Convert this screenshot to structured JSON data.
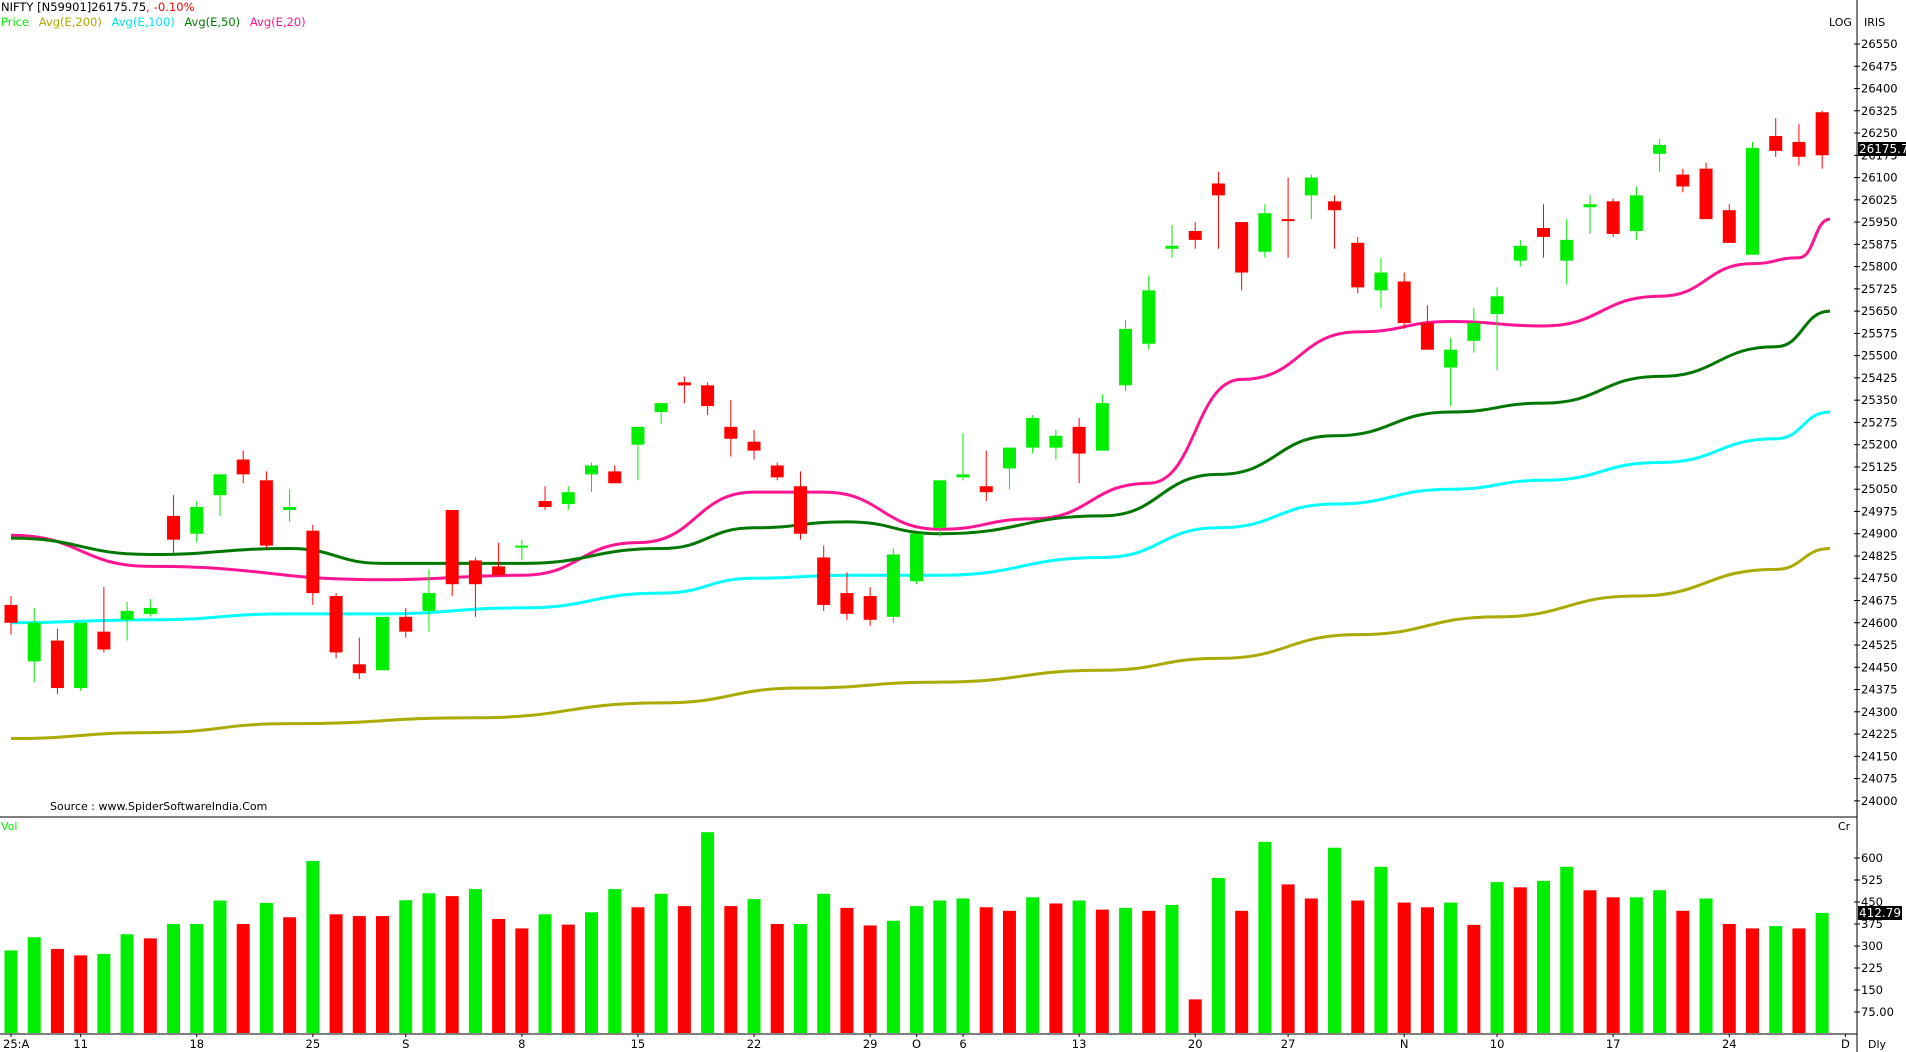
{
  "header": {
    "symbol": "NIFTY [N59901]",
    "last_price": "26175.75",
    "separator": ",",
    "change_pct": "-0.10%",
    "legend": [
      {
        "label": "Price",
        "color": "#00ee00"
      },
      {
        "label": "Avg(E,200)",
        "color": "#aaaa00"
      },
      {
        "label": "Avg(E,100)",
        "color": "#00ffff"
      },
      {
        "label": "Avg(E,50)",
        "color": "#007700"
      },
      {
        "label": "Avg(E,20)",
        "color": "#ff1493"
      }
    ]
  },
  "top_right": {
    "log_label": "LOG",
    "iris_label": "IRIS"
  },
  "source_text": "Source : www.SpiderSoftwareIndia.Com",
  "volume_panel": {
    "label": "Vol",
    "unit_label": "Cr",
    "last_value": "412.79"
  },
  "timeframe_label": "Dly",
  "price_axis": {
    "ticks": [
      "26550",
      "26475",
      "26400",
      "26325",
      "26250",
      "26175",
      "26100",
      "26025",
      "25950",
      "25875",
      "25800",
      "25725",
      "25650",
      "25575",
      "25500",
      "25425",
      "25350",
      "25275",
      "25200",
      "25125",
      "25050",
      "24975",
      "24900",
      "24825",
      "24750",
      "24675",
      "24600",
      "24525",
      "24450",
      "24375",
      "24300",
      "24225",
      "24150",
      "24075",
      "24000"
    ],
    "current_label": "26175.7"
  },
  "volume_axis": {
    "ticks": [
      "600",
      "525",
      "450",
      "375",
      "300",
      "225",
      "150",
      "75.00"
    ]
  },
  "x_axis_labels": [
    {
      "label": "25:A",
      "index": 0
    },
    {
      "label": "11",
      "index": 3
    },
    {
      "label": "18",
      "index": 8
    },
    {
      "label": "25",
      "index": 13
    },
    {
      "label": "S",
      "index": 17
    },
    {
      "label": "8",
      "index": 22
    },
    {
      "label": "15",
      "index": 27
    },
    {
      "label": "22",
      "index": 32
    },
    {
      "label": "29",
      "index": 37
    },
    {
      "label": "O",
      "index": 39
    },
    {
      "label": "6",
      "index": 41
    },
    {
      "label": "13",
      "index": 46
    },
    {
      "label": "20",
      "index": 51
    },
    {
      "label": "27",
      "index": 55
    },
    {
      "label": "N",
      "index": 60
    },
    {
      "label": "10",
      "index": 64
    },
    {
      "label": "17",
      "index": 69
    },
    {
      "label": "24",
      "index": 74
    },
    {
      "label": "D",
      "index": 79
    }
  ],
  "colors": {
    "up": "#00ee00",
    "down": "#ff0000",
    "ema200": "#aaaa00",
    "ema100": "#00ffff",
    "ema50": "#007700",
    "ema20": "#ff1493"
  },
  "chart_data": {
    "type": "candlestick",
    "title": "NIFTY [N59901] 26175.75, -0.10%",
    "scale": "log",
    "ylim": [
      23980,
      26600
    ],
    "ylabel_ticks_step": 75,
    "candles_ohlc_note": "values estimated from pixels; color: g=up, r=down",
    "candles": [
      [
        "r",
        24660,
        24690,
        24560,
        24600
      ],
      [
        "g",
        24600,
        24650,
        24400,
        24470
      ],
      [
        "r",
        24540,
        24580,
        24360,
        24380
      ],
      [
        "g",
        24380,
        24590,
        24370,
        24600
      ],
      [
        "r",
        24570,
        24720,
        24500,
        24510
      ],
      [
        "g",
        24610,
        24670,
        24540,
        24640
      ],
      [
        "g",
        24630,
        24680,
        24620,
        24650
      ],
      [
        "r",
        24960,
        25030,
        24830,
        24880
      ],
      [
        "g",
        24900,
        25010,
        24870,
        24990
      ],
      [
        "g",
        25030,
        25100,
        24960,
        25100
      ],
      [
        "r",
        25150,
        25180,
        25070,
        25100
      ],
      [
        "r",
        25080,
        25110,
        24850,
        24860
      ],
      [
        "g",
        24980,
        25050,
        24940,
        24990
      ],
      [
        "r",
        24910,
        24930,
        24660,
        24700
      ],
      [
        "r",
        24690,
        24700,
        24480,
        24500
      ],
      [
        "r",
        24430,
        24550,
        24410,
        24460
      ],
      [
        "g",
        24440,
        24600,
        24450,
        24620
      ],
      [
        "r",
        24620,
        24650,
        24550,
        24570
      ],
      [
        "g",
        24640,
        24780,
        24570,
        24700
      ],
      [
        "r",
        24980,
        24980,
        24690,
        24730
      ],
      [
        "r",
        24810,
        24820,
        24620,
        24730
      ],
      [
        "r",
        24790,
        24870,
        24770,
        24760
      ],
      [
        "g",
        24860,
        24880,
        24810,
        24860
      ],
      [
        "r",
        25010,
        25060,
        24980,
        24990
      ],
      [
        "g",
        25000,
        25060,
        24980,
        25040
      ],
      [
        "g",
        25130,
        25140,
        25040,
        25100
      ],
      [
        "r",
        25110,
        25130,
        25070,
        25070
      ],
      [
        "g",
        25200,
        25260,
        25080,
        25260
      ],
      [
        "g",
        25310,
        25320,
        25270,
        25340
      ],
      [
        "r",
        25410,
        25430,
        25340,
        25400
      ],
      [
        "r",
        25400,
        25410,
        25300,
        25330
      ],
      [
        "r",
        25260,
        25350,
        25160,
        25220
      ],
      [
        "r",
        25210,
        25250,
        25150,
        25180
      ],
      [
        "r",
        25130,
        25140,
        25080,
        25090
      ],
      [
        "r",
        25060,
        25110,
        24880,
        24900
      ],
      [
        "r",
        24820,
        24860,
        24640,
        24660
      ],
      [
        "r",
        24700,
        24770,
        24610,
        24630
      ],
      [
        "r",
        24690,
        24720,
        24590,
        24610
      ],
      [
        "g",
        24620,
        24850,
        24600,
        24830
      ],
      [
        "g",
        24740,
        24900,
        24730,
        24900
      ],
      [
        "g",
        24920,
        25060,
        24890,
        25080
      ],
      [
        "g",
        25090,
        25240,
        25080,
        25100
      ],
      [
        "r",
        25060,
        25180,
        25010,
        25040
      ],
      [
        "g",
        25120,
        25160,
        25050,
        25190
      ],
      [
        "g",
        25190,
        25300,
        25170,
        25290
      ],
      [
        "g",
        25190,
        25250,
        25150,
        25230
      ],
      [
        "r",
        25260,
        25290,
        25070,
        25170
      ],
      [
        "g",
        25180,
        25370,
        25190,
        25340
      ],
      [
        "g",
        25400,
        25620,
        25380,
        25590
      ],
      [
        "g",
        25540,
        25770,
        25520,
        25720
      ],
      [
        "g",
        25860,
        25940,
        25830,
        25870
      ],
      [
        "r",
        25920,
        25950,
        25860,
        25890
      ],
      [
        "r",
        26080,
        26120,
        25860,
        26040
      ],
      [
        "r",
        25950,
        25950,
        25720,
        25780
      ],
      [
        "g",
        25850,
        26010,
        25830,
        25980
      ],
      [
        "r",
        25960,
        26100,
        25830,
        25960
      ],
      [
        "g",
        26040,
        26110,
        25960,
        26100
      ],
      [
        "r",
        26020,
        26040,
        25860,
        25990
      ],
      [
        "r",
        25880,
        25900,
        25710,
        25730
      ],
      [
        "g",
        25780,
        25830,
        25660,
        25720
      ],
      [
        "r",
        25750,
        25780,
        25590,
        25610
      ],
      [
        "r",
        25610,
        25670,
        25520,
        25520
      ],
      [
        "g",
        25520,
        25560,
        25330,
        25460
      ],
      [
        "g",
        25550,
        25660,
        25510,
        25610
      ],
      [
        "g",
        25700,
        25730,
        25450,
        25640
      ],
      [
        "g",
        25820,
        25890,
        25800,
        25870
      ],
      [
        "r",
        25930,
        26010,
        25830,
        25900
      ],
      [
        "g",
        25890,
        25960,
        25740,
        25820
      ],
      [
        "g",
        26000,
        26040,
        25910,
        26010
      ],
      [
        "r",
        26020,
        26030,
        25900,
        25910
      ],
      [
        "g",
        25920,
        26070,
        25890,
        26040
      ],
      [
        "g",
        26210,
        26230,
        26120,
        26180
      ],
      [
        "r",
        26110,
        26130,
        26050,
        26070
      ],
      [
        "r",
        26130,
        26150,
        25970,
        25960
      ],
      [
        "r",
        25990,
        26010,
        25880,
        25880
      ],
      [
        "g",
        25840,
        26220,
        25840,
        26200
      ],
      [
        "r",
        26240,
        26300,
        26170,
        26190
      ],
      [
        "r",
        26220,
        26280,
        26140,
        26170
      ],
      [
        "r",
        26320,
        26325,
        26130,
        26175
      ]
    ],
    "volume": [
      [
        285,
        "g"
      ],
      [
        330,
        "g"
      ],
      [
        290,
        "r"
      ],
      [
        268,
        "r"
      ],
      [
        273,
        "g"
      ],
      [
        340,
        "g"
      ],
      [
        326,
        "r"
      ],
      [
        375,
        "g"
      ],
      [
        375,
        "g"
      ],
      [
        455,
        "g"
      ],
      [
        375,
        "r"
      ],
      [
        447,
        "g"
      ],
      [
        398,
        "r"
      ],
      [
        590,
        "g"
      ],
      [
        408,
        "r"
      ],
      [
        402,
        "r"
      ],
      [
        402,
        "r"
      ],
      [
        456,
        "g"
      ],
      [
        480,
        "g"
      ],
      [
        470,
        "r"
      ],
      [
        494,
        "g"
      ],
      [
        392,
        "r"
      ],
      [
        360,
        "r"
      ],
      [
        408,
        "g"
      ],
      [
        373,
        "r"
      ],
      [
        415,
        "g"
      ],
      [
        494,
        "g"
      ],
      [
        432,
        "r"
      ],
      [
        478,
        "g"
      ],
      [
        436,
        "r"
      ],
      [
        688,
        "g"
      ],
      [
        436,
        "r"
      ],
      [
        460,
        "g"
      ],
      [
        375,
        "r"
      ],
      [
        375,
        "g"
      ],
      [
        478,
        "g"
      ],
      [
        430,
        "r"
      ],
      [
        370,
        "r"
      ],
      [
        386,
        "g"
      ],
      [
        436,
        "g"
      ],
      [
        455,
        "g"
      ],
      [
        462,
        "g"
      ],
      [
        432,
        "r"
      ],
      [
        420,
        "r"
      ],
      [
        466,
        "g"
      ],
      [
        445,
        "r"
      ],
      [
        455,
        "g"
      ],
      [
        424,
        "r"
      ],
      [
        430,
        "g"
      ],
      [
        420,
        "r"
      ],
      [
        440,
        "g"
      ],
      [
        118,
        "r"
      ],
      [
        532,
        "g"
      ],
      [
        420,
        "r"
      ],
      [
        655,
        "g"
      ],
      [
        510,
        "r"
      ],
      [
        462,
        "r"
      ],
      [
        635,
        "g"
      ],
      [
        455,
        "r"
      ],
      [
        570,
        "g"
      ],
      [
        448,
        "r"
      ],
      [
        432,
        "r"
      ],
      [
        448,
        "g"
      ],
      [
        372,
        "r"
      ],
      [
        518,
        "g"
      ],
      [
        500,
        "r"
      ],
      [
        522,
        "g"
      ],
      [
        570,
        "g"
      ],
      [
        490,
        "r"
      ],
      [
        466,
        "r"
      ],
      [
        466,
        "g"
      ],
      [
        490,
        "g"
      ],
      [
        420,
        "r"
      ],
      [
        462,
        "g"
      ],
      [
        375,
        "r"
      ],
      [
        360,
        "r"
      ],
      [
        368,
        "g"
      ],
      [
        360,
        "r"
      ],
      [
        412.79,
        "g"
      ]
    ],
    "ema": {
      "Avg(E,20)": {
        "start": 24895,
        "points": [
          [
            0,
            24895
          ],
          [
            6,
            24790
          ],
          [
            16,
            24745
          ],
          [
            22,
            24760
          ],
          [
            27,
            24870
          ],
          [
            32,
            25040
          ],
          [
            35,
            25040
          ],
          [
            40,
            24915
          ],
          [
            44,
            24950
          ],
          [
            49,
            25070
          ],
          [
            53,
            25420
          ],
          [
            58,
            25580
          ],
          [
            62,
            25615
          ],
          [
            66,
            25600
          ],
          [
            71,
            25700
          ],
          [
            75,
            25810
          ],
          [
            77,
            25830
          ],
          [
            80,
            25960
          ]
        ]
      },
      "Avg(E,50)": {
        "points": [
          [
            0,
            24885
          ],
          [
            6,
            24830
          ],
          [
            12,
            24850
          ],
          [
            16,
            24800
          ],
          [
            22,
            24800
          ],
          [
            28,
            24850
          ],
          [
            32,
            24920
          ],
          [
            36,
            24940
          ],
          [
            40,
            24900
          ],
          [
            47,
            24960
          ],
          [
            52,
            25100
          ],
          [
            57,
            25230
          ],
          [
            62,
            25310
          ],
          [
            66,
            25340
          ],
          [
            71,
            25430
          ],
          [
            76,
            25530
          ],
          [
            80,
            25650
          ]
        ]
      },
      "Avg(E,100)": {
        "points": [
          [
            0,
            24600
          ],
          [
            6,
            24610
          ],
          [
            12,
            24630
          ],
          [
            16,
            24630
          ],
          [
            22,
            24650
          ],
          [
            28,
            24700
          ],
          [
            32,
            24750
          ],
          [
            36,
            24760
          ],
          [
            40,
            24760
          ],
          [
            47,
            24820
          ],
          [
            52,
            24920
          ],
          [
            57,
            25000
          ],
          [
            62,
            25050
          ],
          [
            66,
            25080
          ],
          [
            71,
            25140
          ],
          [
            76,
            25220
          ],
          [
            80,
            25310
          ]
        ]
      },
      "Avg(E,200)": {
        "points": [
          [
            0,
            24210
          ],
          [
            6,
            24230
          ],
          [
            12,
            24260
          ],
          [
            20,
            24280
          ],
          [
            28,
            24330
          ],
          [
            34,
            24380
          ],
          [
            40,
            24400
          ],
          [
            47,
            24440
          ],
          [
            52,
            24480
          ],
          [
            58,
            24560
          ],
          [
            64,
            24620
          ],
          [
            70,
            24690
          ],
          [
            76,
            24780
          ],
          [
            80,
            24850
          ]
        ]
      }
    }
  }
}
